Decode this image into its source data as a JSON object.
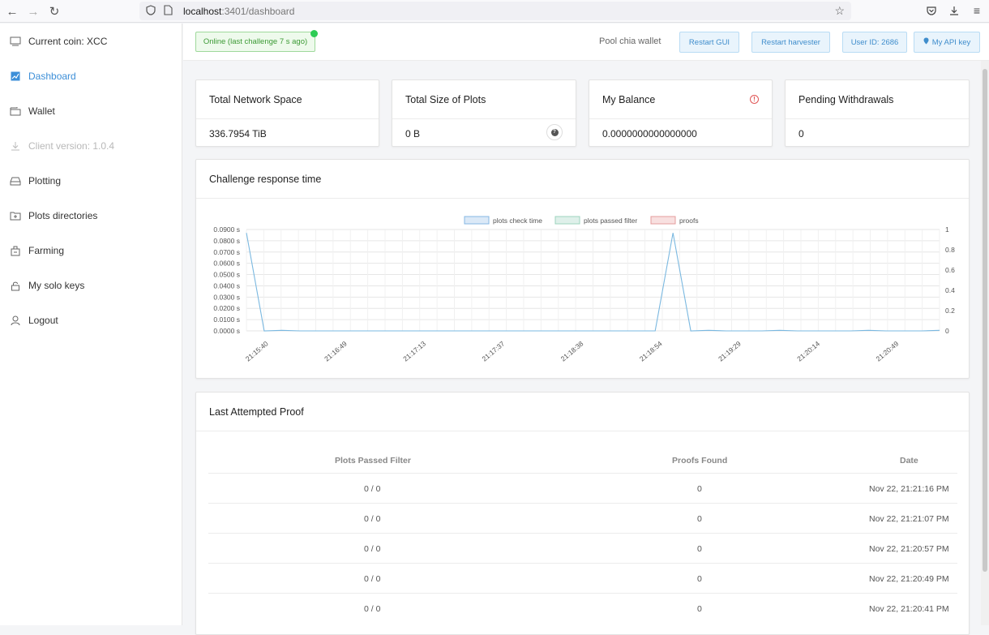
{
  "browser": {
    "url_host": "localhost",
    "url_path": ":3401/dashboard"
  },
  "sidebar": {
    "items": [
      {
        "label": "Current coin: XCC",
        "icon": "coin-icon"
      },
      {
        "label": "Dashboard",
        "icon": "chart-icon"
      },
      {
        "label": "Wallet",
        "icon": "wallet-icon"
      },
      {
        "label": "Client version: 1.0.4",
        "icon": "download-icon"
      },
      {
        "label": "Plotting",
        "icon": "drive-icon"
      },
      {
        "label": "Plots directories",
        "icon": "folder-icon"
      },
      {
        "label": "Farming",
        "icon": "farm-icon"
      },
      {
        "label": "My solo keys",
        "icon": "lock-icon"
      },
      {
        "label": "Logout",
        "icon": "user-icon"
      }
    ]
  },
  "topbar": {
    "status": "Online (last challenge 7 s ago)",
    "pool_label": "Pool chia wallet",
    "restart_gui": "Restart GUI",
    "restart_harvester": "Restart harvester",
    "user_id": "User ID: 2686",
    "api_key": "My API key"
  },
  "stats": [
    {
      "title": "Total Network Space",
      "value": "336.7954 TiB"
    },
    {
      "title": "Total Size of Plots",
      "value": "0 B"
    },
    {
      "title": "My Balance",
      "value": "0.0000000000000000"
    },
    {
      "title": "Pending Withdrawals",
      "value": "0"
    }
  ],
  "chart_section": {
    "title": "Challenge response time"
  },
  "chart_data": {
    "type": "line",
    "legend": [
      "plots check time",
      "plots passed filter",
      "proofs"
    ],
    "x_tick_labels": [
      "21:15:40",
      "21:16:49",
      "21:17:13",
      "21:17:37",
      "21:18:38",
      "21:18:54",
      "21:19:29",
      "21:20:14",
      "21:20:49"
    ],
    "y_left_ticks": [
      "0.0900 s",
      "0.0800 s",
      "0.0700 s",
      "0.0600 s",
      "0.0500 s",
      "0.0400 s",
      "0.0300 s",
      "0.0200 s",
      "0.0100 s",
      "0.0000 s"
    ],
    "y_right_ticks": [
      "1",
      "0.8",
      "0.6",
      "0.4",
      "0.2",
      "0"
    ],
    "ylim_left": [
      0,
      0.09
    ],
    "ylim_right": [
      0,
      1
    ],
    "series": [
      {
        "name": "plots check time",
        "values": [
          0.087,
          0.0,
          0.0005,
          0.0,
          0.0,
          0.0,
          0.0,
          0.0,
          0.0,
          0.0,
          0.0,
          0.0,
          0.0,
          0.0,
          0.0,
          0.0,
          0.0,
          0.0,
          0.0,
          0.0,
          0.0,
          0.0,
          0.0,
          0.0,
          0.087,
          0.0,
          0.0005,
          0.0,
          0.0,
          0.0,
          0.0005,
          0.0,
          0.0,
          0.0,
          0.0,
          0.0005,
          0.0,
          0.0,
          0.0,
          0.0005
        ]
      }
    ]
  },
  "proof_section": {
    "title": "Last Attempted Proof",
    "columns": [
      "Plots Passed Filter",
      "Proofs Found",
      "Date"
    ],
    "rows": [
      {
        "filter": "0 / 0",
        "proofs": "0",
        "date": "Nov 22, 21:21:16 PM"
      },
      {
        "filter": "0 / 0",
        "proofs": "0",
        "date": "Nov 22, 21:21:07 PM"
      },
      {
        "filter": "0 / 0",
        "proofs": "0",
        "date": "Nov 22, 21:20:57 PM"
      },
      {
        "filter": "0 / 0",
        "proofs": "0",
        "date": "Nov 22, 21:20:49 PM"
      },
      {
        "filter": "0 / 0",
        "proofs": "0",
        "date": "Nov 22, 21:20:41 PM"
      }
    ]
  },
  "colors": {
    "accent": "#3d8fd8",
    "online": "#2ecc55",
    "line": "#7ab8e0"
  }
}
